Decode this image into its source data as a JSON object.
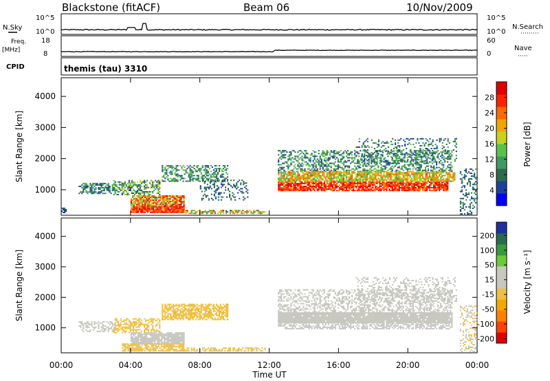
{
  "header": {
    "radar": "Blackstone (fitACF)",
    "beam": "Beam 06",
    "date": "10/Nov/2009"
  },
  "top_panels": {
    "nsky_label": "N.Sky",
    "nsky_ticks": [
      "10^5",
      "10^0"
    ],
    "nsearch_label": "N.Search",
    "nsearch_ticks": [
      "10^5",
      "10^0"
    ],
    "freq_label": "Freq.",
    "freq_unit": "[MHz]",
    "freq_ticks": [
      "18",
      "8"
    ],
    "nave_label": "Nave",
    "nave_ticks": [
      "60",
      "0"
    ],
    "cpid_label": "CPID",
    "cpid_value": "themis (tau) 3310"
  },
  "colors": {
    "power_scale": [
      "#0000ff",
      "#1f3fa0",
      "#2f6a4e",
      "#3f9a5f",
      "#59c24a",
      "#c8d21c",
      "#f5a400",
      "#ff6a00",
      "#ff2200",
      "#e00000"
    ],
    "velocity_scale": [
      "#e00000",
      "#ff4000",
      "#ff8000",
      "#f5a700",
      "#f0c040",
      "#c8c8c0",
      "#c8c8c0",
      "#6acb36",
      "#3a9a3a",
      "#2a6a50",
      "#2030a0"
    ]
  },
  "chart_data": [
    {
      "type": "heatmap",
      "title": "",
      "ylabel": "Slant Range [km]",
      "xlabel": "",
      "x_ticks": [
        "00:00",
        "04:00",
        "08:00",
        "12:00",
        "16:00",
        "20:00",
        "00:00"
      ],
      "y_ticks": [
        "1000",
        "2000",
        "3000",
        "4000"
      ],
      "ylim": [
        180,
        4600
      ],
      "colorbar": {
        "label": "Power [dB]",
        "ticks": [
          "4",
          "8",
          "12",
          "16",
          "20",
          "24",
          "28"
        ],
        "range": [
          0,
          32
        ]
      },
      "regions": [
        {
          "t0": 1.0,
          "t1": 3.1,
          "r0": 860,
          "r1": 1200,
          "v0": 4,
          "v1": 14,
          "d": 0.55
        },
        {
          "t0": 3.0,
          "t1": 5.7,
          "r0": 820,
          "r1": 1300,
          "v0": 4,
          "v1": 20,
          "d": 0.55
        },
        {
          "t0": 4.0,
          "t1": 7.1,
          "r0": 250,
          "r1": 460,
          "v0": 22,
          "v1": 32,
          "d": 0.95
        },
        {
          "t0": 4.0,
          "t1": 7.1,
          "r0": 460,
          "r1": 820,
          "v0": 12,
          "v1": 30,
          "d": 0.85
        },
        {
          "t0": 5.8,
          "t1": 9.6,
          "r0": 1250,
          "r1": 1750,
          "v0": 4,
          "v1": 16,
          "d": 0.5
        },
        {
          "t0": 7.0,
          "t1": 11.8,
          "r0": 220,
          "r1": 340,
          "v0": 8,
          "v1": 26,
          "d": 0.6
        },
        {
          "t0": 8.0,
          "t1": 10.8,
          "r0": 650,
          "r1": 1300,
          "v0": 4,
          "v1": 10,
          "d": 0.22
        },
        {
          "t0": 0.0,
          "t1": 0.3,
          "r0": 200,
          "r1": 420,
          "v0": 4,
          "v1": 8,
          "d": 0.5
        },
        {
          "t0": 12.5,
          "t1": 22.3,
          "r0": 950,
          "r1": 1250,
          "v0": 22,
          "v1": 32,
          "d": 0.85
        },
        {
          "t0": 12.5,
          "t1": 22.7,
          "r0": 1250,
          "r1": 1600,
          "v0": 12,
          "v1": 26,
          "d": 0.8
        },
        {
          "t0": 12.5,
          "t1": 22.5,
          "r0": 1600,
          "r1": 2250,
          "v0": 4,
          "v1": 16,
          "d": 0.45
        },
        {
          "t0": 17.0,
          "t1": 22.8,
          "r0": 1850,
          "r1": 2650,
          "v0": 4,
          "v1": 14,
          "d": 0.22
        },
        {
          "t0": 23.0,
          "t1": 24.0,
          "r0": 200,
          "r1": 1700,
          "v0": 4,
          "v1": 12,
          "d": 0.3
        }
      ]
    },
    {
      "type": "heatmap",
      "title": "",
      "ylabel": "Slant Range [km]",
      "xlabel": "Time UT",
      "x_ticks": [
        "00:00",
        "04:00",
        "08:00",
        "12:00",
        "16:00",
        "20:00",
        "00:00"
      ],
      "y_ticks": [
        "1000",
        "2000",
        "3000",
        "4000"
      ],
      "ylim": [
        180,
        4600
      ],
      "colorbar": {
        "label": "Velocity [m s⁻¹]",
        "ticks": [
          "200",
          "100",
          "50",
          "15",
          "-15",
          "-50",
          "-100",
          "-200"
        ],
        "range": [
          -250,
          250
        ]
      },
      "regions": [
        {
          "t0": 1.0,
          "t1": 3.1,
          "r0": 860,
          "r1": 1200,
          "v0": -15,
          "v1": 10,
          "d": 0.5
        },
        {
          "t0": 3.0,
          "t1": 5.7,
          "r0": 820,
          "r1": 1300,
          "v0": -60,
          "v1": -20,
          "d": 0.5
        },
        {
          "t0": 4.0,
          "t1": 7.1,
          "r0": 450,
          "r1": 820,
          "v0": -12,
          "v1": 12,
          "d": 0.9
        },
        {
          "t0": 3.5,
          "t1": 7.1,
          "r0": 220,
          "r1": 450,
          "v0": -60,
          "v1": -20,
          "d": 0.7
        },
        {
          "t0": 5.8,
          "t1": 9.6,
          "r0": 1250,
          "r1": 1750,
          "v0": -70,
          "v1": -30,
          "d": 0.7
        },
        {
          "t0": 7.0,
          "t1": 11.8,
          "r0": 220,
          "r1": 340,
          "v0": -60,
          "v1": -20,
          "d": 0.55
        },
        {
          "t0": 12.5,
          "t1": 22.5,
          "r0": 1150,
          "r1": 1500,
          "v0": -12,
          "v1": 12,
          "d": 0.95
        },
        {
          "t0": 12.5,
          "t1": 22.5,
          "r0": 950,
          "r1": 1150,
          "v0": -15,
          "v1": 12,
          "d": 0.6
        },
        {
          "t0": 12.5,
          "t1": 22.5,
          "r0": 1500,
          "r1": 2250,
          "v0": -12,
          "v1": 60,
          "d": 0.45
        },
        {
          "t0": 17.0,
          "t1": 22.8,
          "r0": 1850,
          "r1": 2650,
          "v0": -12,
          "v1": 12,
          "d": 0.3
        },
        {
          "t0": 23.0,
          "t1": 24.0,
          "r0": 200,
          "r1": 1700,
          "v0": -40,
          "v1": 10,
          "d": 0.3
        }
      ]
    }
  ]
}
